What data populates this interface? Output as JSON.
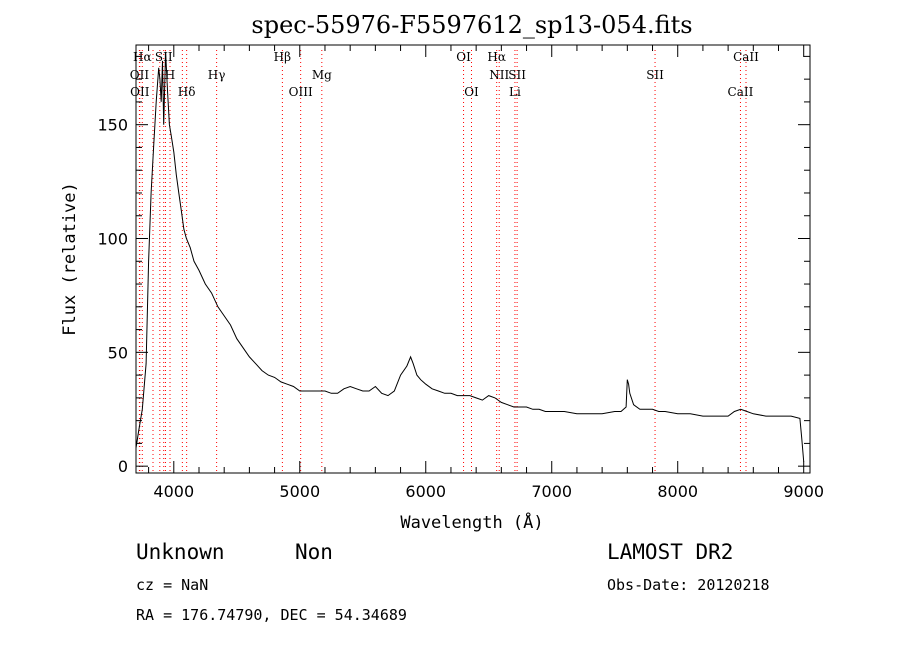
{
  "chart_data": {
    "type": "line",
    "title": "spec-55976-F5597612_sp13-054.fits",
    "xlabel": "Wavelength (Å)",
    "ylabel": "Flux (relative)",
    "xlim": [
      3700,
      9050
    ],
    "ylim": [
      -3,
      185
    ],
    "xticks": [
      4000,
      5000,
      6000,
      7000,
      8000,
      9000
    ],
    "yticks": [
      0,
      50,
      100,
      150
    ],
    "grid": false,
    "line_color": "#000000",
    "marker_line_color": "#ff0000",
    "series": [
      {
        "x": [
          3700,
          3720,
          3750,
          3780,
          3800,
          3820,
          3840,
          3860,
          3880,
          3890,
          3900,
          3910,
          3920,
          3935,
          3950,
          3965,
          3980,
          4000,
          4020,
          4040,
          4060,
          4080,
          4100,
          4130,
          4160,
          4200,
          4250,
          4300,
          4350,
          4400,
          4450,
          4500,
          4550,
          4600,
          4650,
          4700,
          4750,
          4800,
          4850,
          4900,
          4950,
          5000,
          5050,
          5100,
          5150,
          5200,
          5250,
          5300,
          5350,
          5400,
          5450,
          5500,
          5550,
          5600,
          5650,
          5700,
          5750,
          5800,
          5850,
          5880,
          5900,
          5930,
          5960,
          6000,
          6050,
          6100,
          6150,
          6200,
          6250,
          6300,
          6350,
          6400,
          6450,
          6500,
          6550,
          6600,
          6650,
          6700,
          6750,
          6800,
          6850,
          6900,
          6950,
          7000,
          7100,
          7200,
          7300,
          7400,
          7500,
          7550,
          7590,
          7600,
          7610,
          7620,
          7650,
          7700,
          7800,
          7850,
          7900,
          8000,
          8100,
          8200,
          8300,
          8400,
          8450,
          8500,
          8550,
          8600,
          8700,
          8800,
          8900,
          8970,
          8985,
          9000
        ],
        "values": [
          8,
          15,
          25,
          45,
          90,
          120,
          140,
          160,
          175,
          170,
          160,
          178,
          150,
          182,
          165,
          150,
          145,
          138,
          128,
          120,
          112,
          104,
          100,
          96,
          90,
          86,
          80,
          76,
          70,
          66,
          62,
          56,
          52,
          48,
          45,
          42,
          40,
          39,
          37,
          36,
          35,
          33,
          33,
          33,
          33,
          33,
          32,
          32,
          34,
          35,
          34,
          33,
          33,
          35,
          32,
          31,
          33,
          40,
          44,
          48,
          45,
          40,
          38,
          36,
          34,
          33,
          32,
          32,
          31,
          31,
          31,
          30,
          29,
          31,
          30,
          28,
          27,
          26,
          26,
          26,
          25,
          25,
          24,
          24,
          24,
          23,
          23,
          23,
          24,
          24,
          26,
          38,
          36,
          32,
          27,
          25,
          25,
          24,
          24,
          23,
          23,
          22,
          22,
          22,
          24,
          25,
          24,
          23,
          22,
          22,
          22,
          21,
          12,
          2
        ]
      }
    ],
    "spectral_lines": [
      {
        "label": "Hα",
        "wavelength": 3750,
        "row": 0
      },
      {
        "label": "SII",
        "wavelength": 3920,
        "row": 0
      },
      {
        "label": "Hβ",
        "wavelength": 4862,
        "row": 0
      },
      {
        "label": "OI",
        "wavelength": 6300,
        "row": 0
      },
      {
        "label": "Hα",
        "wavelength": 6563,
        "row": 0
      },
      {
        "label": "CaII",
        "wavelength": 8542,
        "row": 0
      },
      {
        "label": "OII",
        "wavelength": 3727,
        "row": 1
      },
      {
        "label": "H",
        "wavelength": 3970,
        "row": 1
      },
      {
        "label": "Hγ",
        "wavelength": 4340,
        "row": 1
      },
      {
        "label": "Mg",
        "wavelength": 5175,
        "row": 1
      },
      {
        "label": "NII",
        "wavelength": 6583,
        "row": 1
      },
      {
        "label": "SII",
        "wavelength": 6725,
        "row": 1
      },
      {
        "label": "SII",
        "wavelength": 7820,
        "row": 1
      },
      {
        "label": "OII",
        "wavelength": 3730,
        "row": 2
      },
      {
        "label": "Hδ",
        "wavelength": 4102,
        "row": 2
      },
      {
        "label": "OIII",
        "wavelength": 5007,
        "row": 2
      },
      {
        "label": "OI",
        "wavelength": 6363,
        "row": 2
      },
      {
        "label": "Li",
        "wavelength": 6708,
        "row": 2
      },
      {
        "label": "CaII",
        "wavelength": 8498,
        "row": 2
      }
    ],
    "extra_marker_lines": [
      3835,
      3889,
      3934,
      4068,
      4861,
      5007,
      5175,
      6300,
      6363,
      6563,
      6708,
      7820,
      8498,
      8542
    ]
  },
  "info": {
    "class": "Unknown",
    "subclass": "Non",
    "survey": "LAMOST DR2",
    "cz": "cz = NaN",
    "obs_date": "Obs-Date: 20120218",
    "coords": "RA = 176.74790, DEC =  54.34689"
  }
}
